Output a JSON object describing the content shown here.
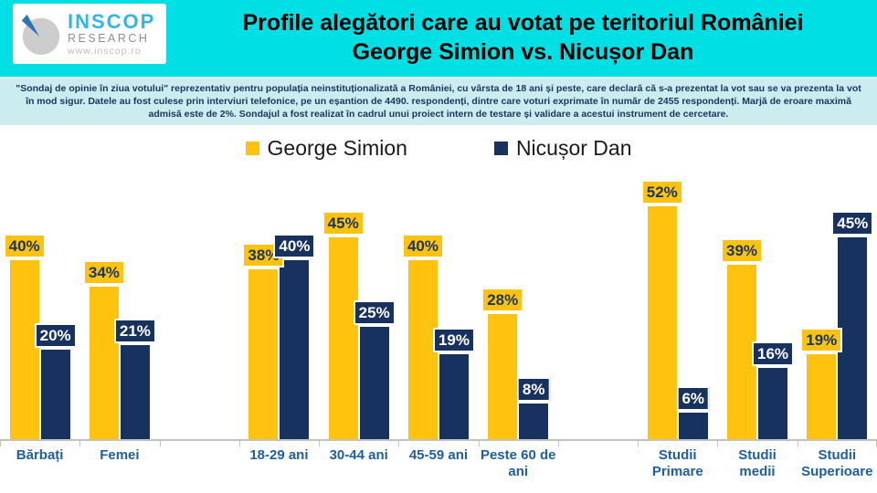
{
  "header": {
    "logo": {
      "name": "INSCOP",
      "sub": "RESEARCH",
      "url": "www.inscop.ro"
    },
    "title_line1": "Profile alegători care au votat pe teritoriul României",
    "title_line2": "George Simion vs. Nicușor Dan"
  },
  "disclaimer": "\"Sondaj de opinie în ziua votului\" reprezentativ pentru populația neinstituționalizată a României, cu vârsta de 18 ani și peste, care declară că s-a prezentat la vot sau se va prezenta la vot în mod sigur. Datele au fost culese prin interviuri telefonice, pe un eșantion de 4490. respondenți, dintre care voturi exprimate în număr de 2455 respondenți. Marjă de eroare maximă admisă este de 2%. Sondajul a fost realizat în cadrul unui proiect intern de testare și validare a acestui instrument de cercetare.",
  "colors": {
    "simion_yellow": "#FFC20E",
    "dan_navy": "#17325F",
    "header_band": "#00E0E4",
    "note_band": "#CBEDEF",
    "note_text": "#17365D",
    "category_label_blue": "#1F5FA0",
    "axis_gray": "#C2C2C2"
  },
  "chart_data": {
    "type": "bar",
    "title": "Profile alegători care au votat pe teritoriul României — George Simion vs. Nicușor Dan",
    "unit": "%",
    "xlabel": "",
    "ylabel": "",
    "ylim": [
      0,
      55
    ],
    "grid": false,
    "legend_position": "top",
    "value_labels": true,
    "categories": [
      "Bărbați",
      "Femei",
      "",
      "18-29 ani",
      "30-44 ani",
      "45-59 ani",
      "Peste 60 de ani",
      "",
      "Studii Primare",
      "Studii medii",
      "Studii Superioare"
    ],
    "series": [
      {
        "name": "George Simion",
        "color": "#FFC20E",
        "label_text_color": "#17365D",
        "values": [
          40,
          34,
          null,
          38,
          45,
          40,
          28,
          null,
          52,
          39,
          19
        ]
      },
      {
        "name": "Nicușor Dan",
        "color": "#17325F",
        "label_text_color": "#FFFFFF",
        "values": [
          20,
          21,
          null,
          40,
          25,
          19,
          8,
          null,
          6,
          16,
          45
        ]
      }
    ]
  }
}
